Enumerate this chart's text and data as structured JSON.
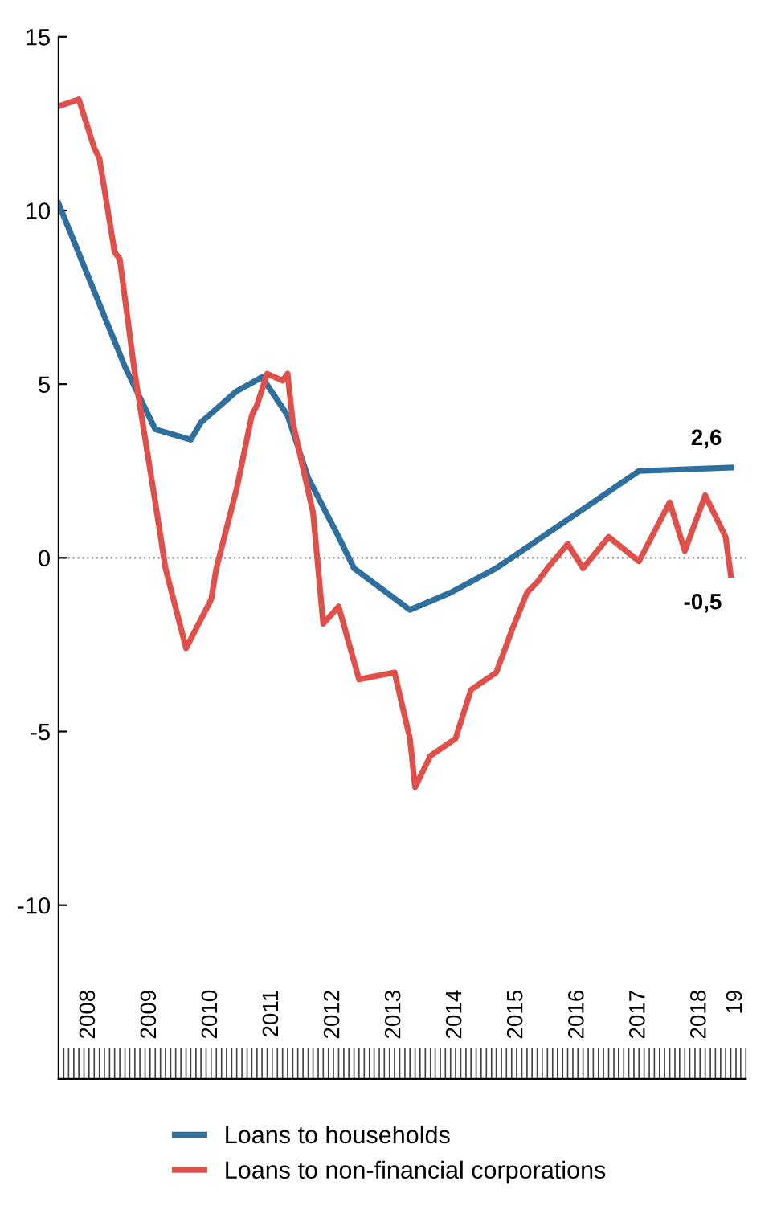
{
  "chart_data": {
    "type": "line",
    "x": [
      "2008-01",
      "2009-02",
      "2009-08",
      "2010-03",
      "2010-05",
      "2010-12",
      "2011-05",
      "2011-10",
      "2012-02",
      "2012-08",
      "2012-11",
      "2013-10",
      "2014-06",
      "2015-03",
      "2015-10",
      "2017-07",
      "2019-01"
    ],
    "series": [
      {
        "name": "Loans to households",
        "color": "#2e6f9e",
        "values": [
          10.2,
          5.5,
          3.7,
          3.4,
          3.9,
          4.8,
          5.2,
          4.1,
          2.3,
          0.6,
          -0.3,
          -1.5,
          -1.0,
          -0.3,
          0.4,
          2.5,
          2.6
        ]
      },
      {
        "name": "Loans to non-financial corporations",
        "color": "#e0504a",
        "x": [
          "2008-01",
          "2008-05",
          "2008-08",
          "2008-09",
          "2008-12",
          "2009-01",
          "2009-04",
          "2009-08",
          "2009-10",
          "2010-02",
          "2010-07",
          "2010-08",
          "2010-12",
          "2011-03",
          "2011-04",
          "2011-06",
          "2011-09",
          "2011-10",
          "2011-11",
          "2012-03",
          "2012-05",
          "2012-08",
          "2012-12",
          "2013-07",
          "2013-10",
          "2013-11",
          "2014-02",
          "2014-07",
          "2014-10",
          "2015-03",
          "2015-06",
          "2015-09",
          "2015-11",
          "2016-01",
          "2016-05",
          "2016-08",
          "2017-01",
          "2017-07",
          "2018-01",
          "2018-04",
          "2018-08",
          "2018-12",
          "2019-01"
        ],
        "values": [
          13.0,
          13.2,
          11.8,
          11.5,
          8.8,
          8.6,
          5.3,
          1.6,
          -0.3,
          -2.6,
          -1.2,
          -0.3,
          2.0,
          4.1,
          4.4,
          5.3,
          5.1,
          5.3,
          3.9,
          1.3,
          -1.9,
          -1.4,
          -3.5,
          -3.3,
          -5.2,
          -6.6,
          -5.7,
          -5.2,
          -3.8,
          -3.3,
          -2.1,
          -1.0,
          -0.7,
          -0.3,
          0.4,
          -0.3,
          0.6,
          -0.1,
          1.6,
          0.2,
          1.8,
          0.6,
          -0.5
        ]
      }
    ],
    "annotations": [
      {
        "text": "2,6",
        "x": "2019-01",
        "y": 2.6
      },
      {
        "text": "-0,5",
        "x": "2019-01",
        "y": -0.5
      }
    ],
    "ylim": [
      -15,
      15
    ],
    "yticks": [
      -10,
      -5,
      0,
      5,
      10,
      15
    ],
    "xlim": [
      "2008-01",
      "2019-04"
    ],
    "xticks": [
      {
        "value": "2008-07",
        "label": "2008"
      },
      {
        "value": "2009-07",
        "label": "2009"
      },
      {
        "value": "2010-07",
        "label": "2010"
      },
      {
        "value": "2011-07",
        "label": "2011"
      },
      {
        "value": "2012-07",
        "label": "2012"
      },
      {
        "value": "2013-07",
        "label": "2013"
      },
      {
        "value": "2014-07",
        "label": "2014"
      },
      {
        "value": "2015-07",
        "label": "2015"
      },
      {
        "value": "2016-07",
        "label": "2016"
      },
      {
        "value": "2017-07",
        "label": "2017"
      },
      {
        "value": "2018-07",
        "label": "2018"
      },
      {
        "value": "2019-02",
        "label": "19"
      }
    ],
    "ref_lines": [
      {
        "axis": "y",
        "value": 0,
        "color": "#888888",
        "line_style": "dotted"
      }
    ],
    "grid": false,
    "legend": "bottom",
    "marker": "none",
    "line_style": "solid"
  }
}
